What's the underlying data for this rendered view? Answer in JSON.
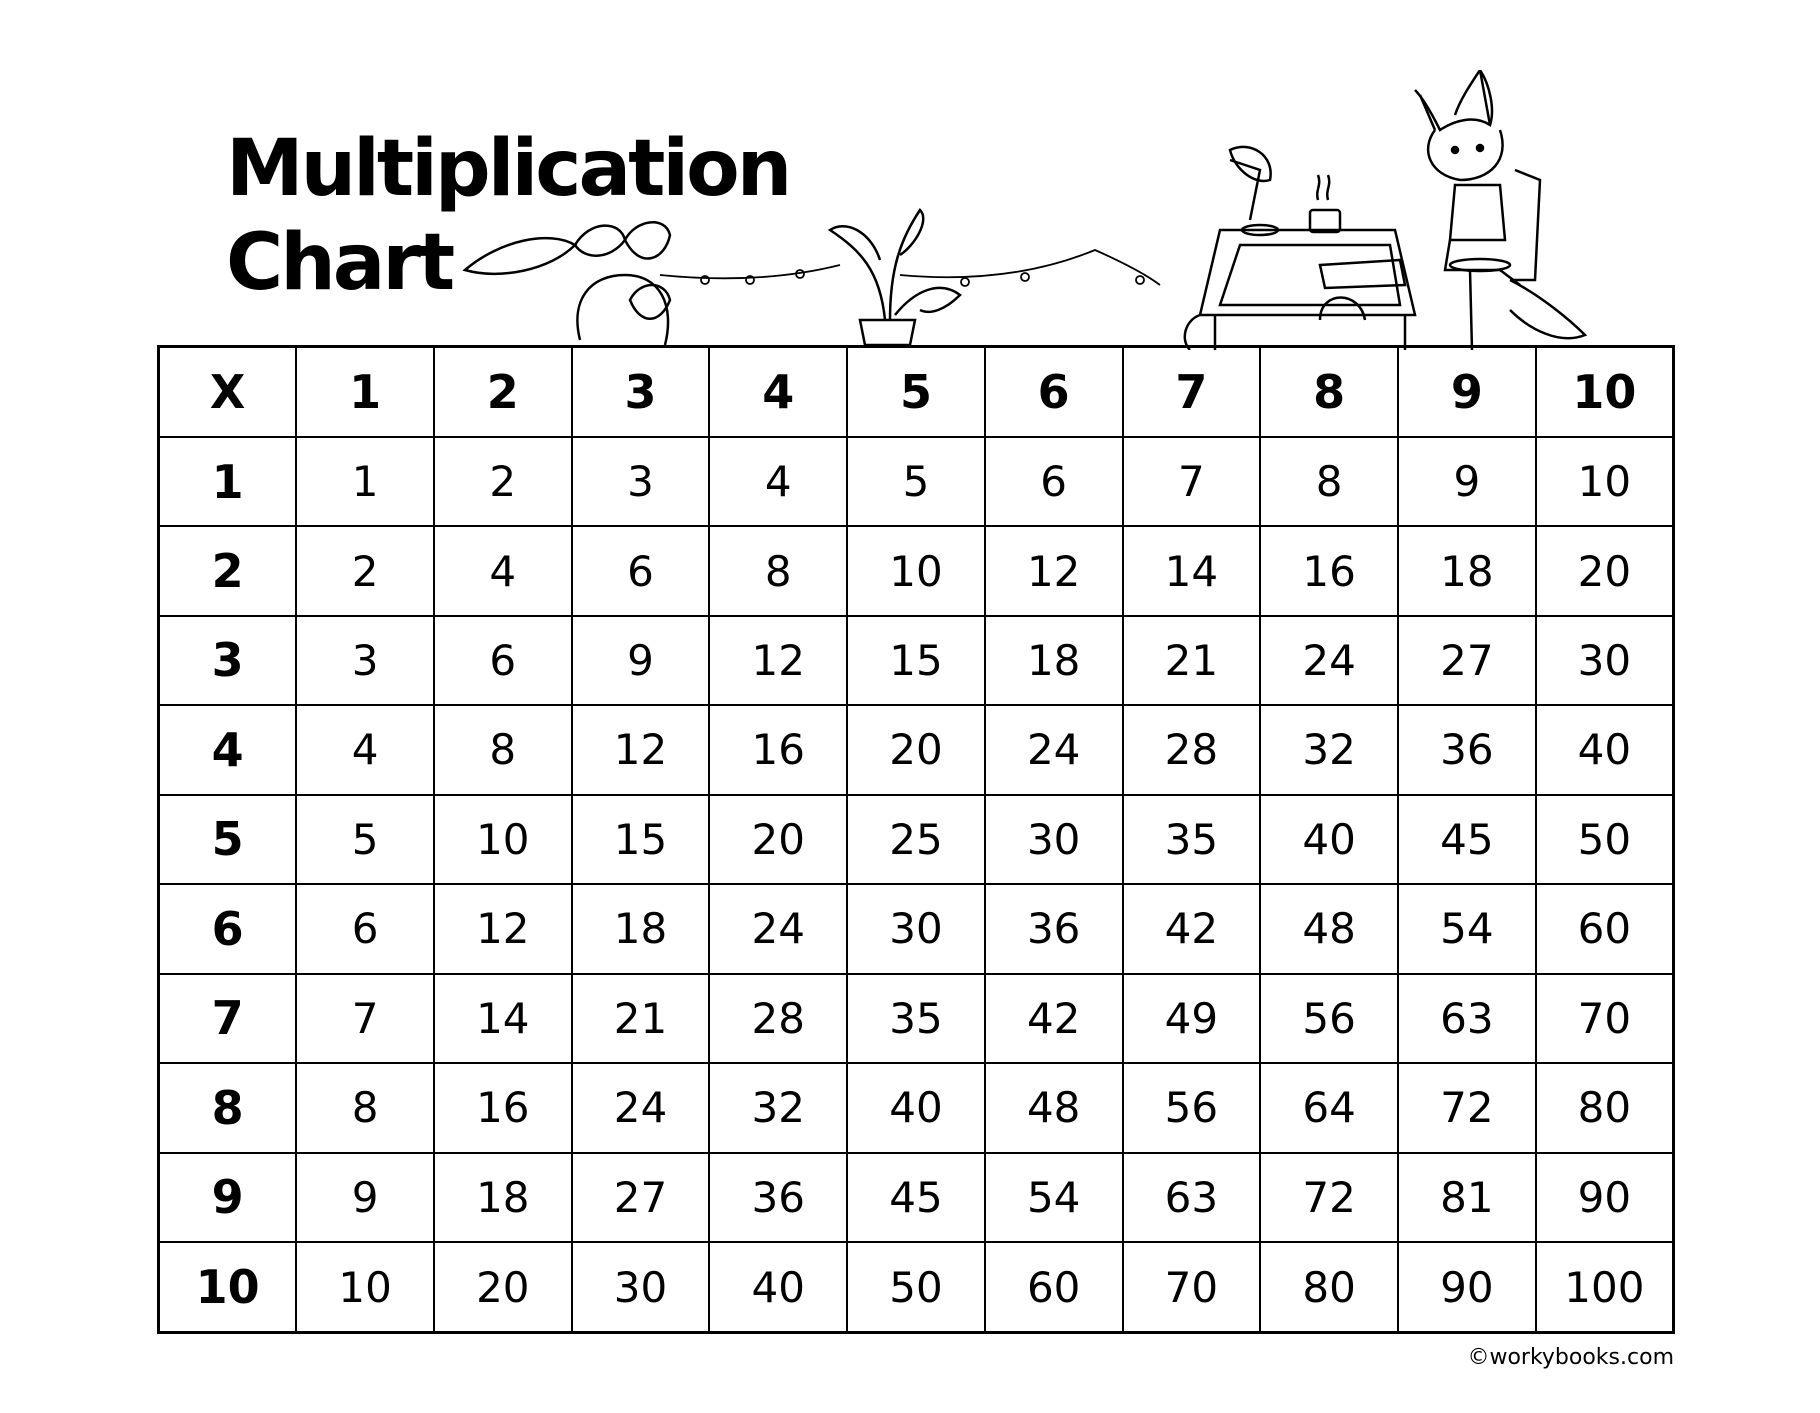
{
  "title_line1": "Multiplication",
  "title_line2": "Chart",
  "credit": "©workybooks.com",
  "illustration": "fox-at-desk-with-plants-line-art",
  "chart_data": {
    "type": "table",
    "corner": "X",
    "column_headers": [
      "1",
      "2",
      "3",
      "4",
      "5",
      "6",
      "7",
      "8",
      "9",
      "10"
    ],
    "row_headers": [
      "1",
      "2",
      "3",
      "4",
      "5",
      "6",
      "7",
      "8",
      "9",
      "10"
    ],
    "rows": [
      [
        "1",
        "2",
        "3",
        "4",
        "5",
        "6",
        "7",
        "8",
        "9",
        "10"
      ],
      [
        "2",
        "4",
        "6",
        "8",
        "10",
        "12",
        "14",
        "16",
        "18",
        "20"
      ],
      [
        "3",
        "6",
        "9",
        "12",
        "15",
        "18",
        "21",
        "24",
        "27",
        "30"
      ],
      [
        "4",
        "8",
        "12",
        "16",
        "20",
        "24",
        "28",
        "32",
        "36",
        "40"
      ],
      [
        "5",
        "10",
        "15",
        "20",
        "25",
        "30",
        "35",
        "40",
        "45",
        "50"
      ],
      [
        "6",
        "12",
        "18",
        "24",
        "30",
        "36",
        "42",
        "48",
        "54",
        "60"
      ],
      [
        "7",
        "14",
        "21",
        "28",
        "35",
        "42",
        "49",
        "56",
        "63",
        "70"
      ],
      [
        "8",
        "16",
        "24",
        "32",
        "40",
        "48",
        "56",
        "64",
        "72",
        "80"
      ],
      [
        "9",
        "18",
        "27",
        "36",
        "45",
        "54",
        "63",
        "72",
        "81",
        "90"
      ],
      [
        "10",
        "20",
        "30",
        "40",
        "50",
        "60",
        "70",
        "80",
        "90",
        "100"
      ]
    ]
  }
}
